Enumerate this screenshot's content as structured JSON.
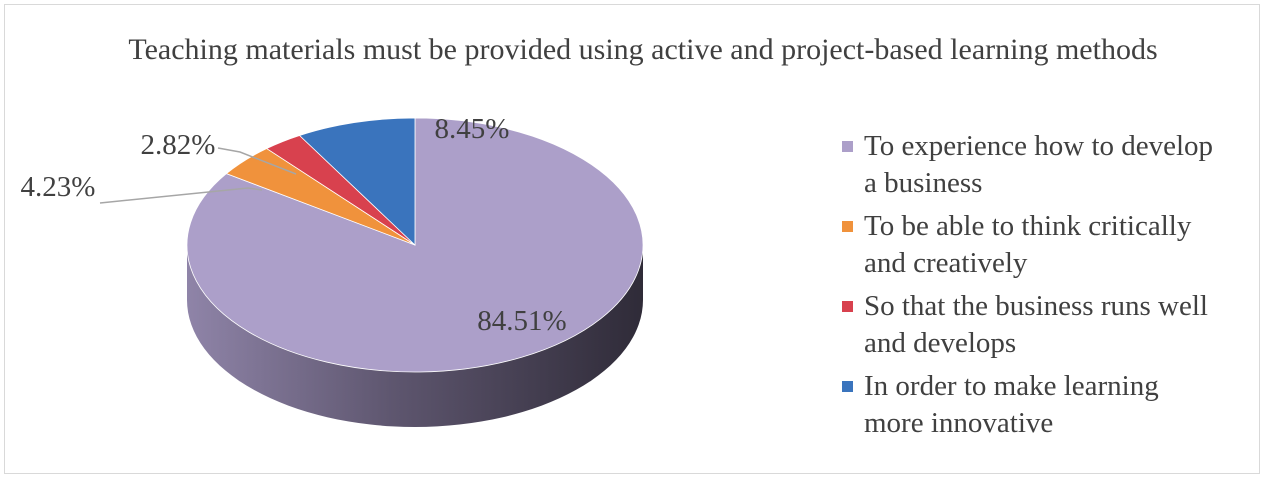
{
  "chart_data": {
    "type": "pie",
    "title": "Teaching materials must be provided using active and project-based learning methods",
    "categories": [
      "To experience how to develop a business",
      "To be able to think critically and creatively",
      "So that the business runs well and develops",
      "In order to make learning more innovative"
    ],
    "values": [
      84.51,
      4.23,
      2.82,
      8.45
    ],
    "labels": [
      "84.51%",
      "4.23%",
      "2.82%",
      "8.45%"
    ],
    "colors": [
      "#ac9fc9",
      "#f0923c",
      "#d8414e",
      "#3a74bd"
    ],
    "legend_position": "right",
    "style": "3d"
  }
}
